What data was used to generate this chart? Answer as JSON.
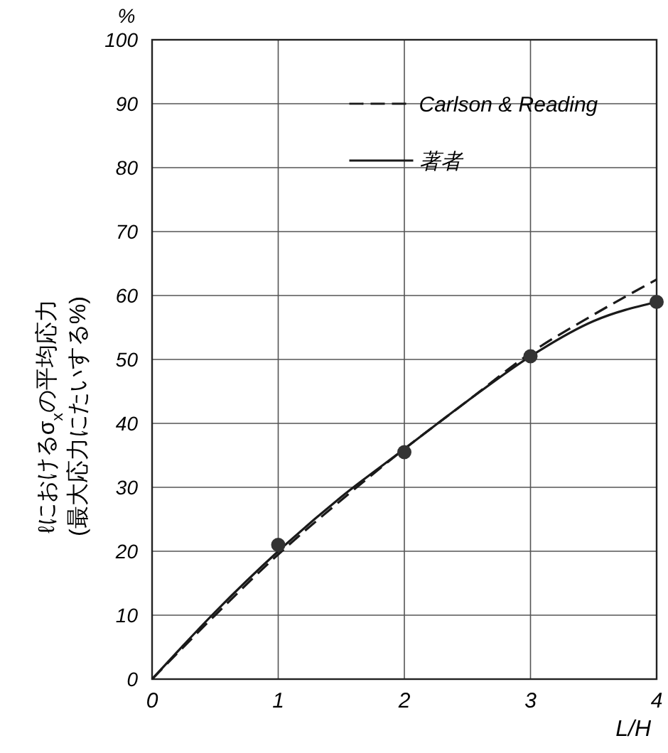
{
  "chart_data": {
    "type": "line",
    "xlabel": "L/H",
    "ylabel": "ℓにおけるσ$_{x}$の平均応力\n(最大応力にたいする%)",
    "annotations": [
      "%"
    ],
    "x": [
      0,
      0.5,
      1,
      1.5,
      2,
      2.5,
      3,
      3.5,
      4
    ],
    "series": [
      {
        "name": "Carlson & Reading",
        "color": "#1a1a1a",
        "line_style": "dashed",
        "marker": "none",
        "values": [
          0,
          10,
          19.5,
          28,
          36,
          43.5,
          51,
          57,
          62.5
        ]
      },
      {
        "name": "著者",
        "color": "#1a1a1a",
        "line_style": "solid",
        "marker": "none",
        "values": [
          0,
          10.5,
          20,
          28.5,
          36,
          43.5,
          50.5,
          56,
          59
        ]
      },
      {
        "type": "scatter",
        "color": "#333333",
        "marker": "circle",
        "x": [
          1,
          2,
          3,
          4
        ],
        "values": [
          21,
          35.5,
          50.5,
          59
        ]
      }
    ],
    "xlim": [
      0,
      4
    ],
    "xticks": [
      0,
      1,
      2,
      3,
      4
    ],
    "ylim": [
      0,
      100
    ],
    "yticks": [
      0,
      10,
      20,
      30,
      40,
      50,
      60,
      70,
      80,
      90,
      100
    ],
    "grid": true,
    "legend": "top"
  }
}
